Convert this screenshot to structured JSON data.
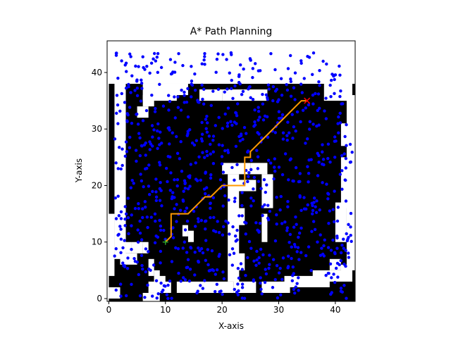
{
  "chart_data": {
    "type": "scatter",
    "title": "A* Path Planning",
    "xlabel": "X-axis",
    "ylabel": "Y-axis",
    "xlim": [
      -0.3,
      43.5
    ],
    "ylim": [
      -0.5,
      45.6
    ],
    "xticks": [
      0,
      10,
      20,
      30,
      40
    ],
    "yticks": [
      0,
      10,
      20,
      30,
      40
    ],
    "grid": false,
    "legend": "none",
    "occupancy_grid": {
      "cell_size": 1,
      "free_value_color": "#ffffff",
      "occupied_value_color": "#000000",
      "background_extent_x": [
        0,
        43
      ],
      "background_extent_y": [
        0,
        38
      ],
      "free_cells": [
        [
          0,
          1,
          0,
          1
        ],
        [
          0,
          0,
          3,
          0
        ],
        [
          0,
          0,
          4,
          14
        ],
        [
          1,
          2,
          7,
          39
        ],
        [
          2,
          4,
          6,
          7
        ],
        [
          3,
          3,
          8,
          9
        ],
        [
          4,
          5,
          8,
          9
        ],
        [
          5,
          5,
          9,
          9
        ],
        [
          6,
          6,
          8,
          9
        ],
        [
          6,
          8,
          -1,
          0
        ],
        [
          5,
          6,
          32,
          33
        ],
        [
          6,
          7,
          34,
          35
        ],
        [
          7,
          7,
          4,
          6
        ],
        [
          8,
          8,
          3,
          4
        ],
        [
          8,
          9,
          1,
          3
        ],
        [
          7,
          10,
          1,
          2
        ],
        [
          6,
          11,
          35,
          37
        ],
        [
          11,
          13,
          36,
          37
        ],
        [
          12,
          21,
          1,
          2
        ],
        [
          13,
          13,
          11,
          12
        ],
        [
          14,
          14,
          10,
          11
        ],
        [
          16,
          19,
          35,
          36
        ],
        [
          20,
          27,
          35,
          36
        ],
        [
          22,
          24,
          1,
          2
        ],
        [
          22,
          22,
          3,
          4
        ],
        [
          23,
          25,
          1,
          2
        ],
        [
          21,
          22,
          3,
          21
        ],
        [
          22,
          23,
          5,
          7
        ],
        [
          22,
          23,
          13,
          15
        ],
        [
          22,
          25,
          19,
          20
        ],
        [
          20,
          24,
          22,
          23
        ],
        [
          25,
          27,
          22,
          23
        ],
        [
          27,
          28,
          16,
          21
        ],
        [
          27,
          27,
          10,
          14
        ],
        [
          27,
          30,
          1,
          2
        ],
        [
          30,
          31,
          1,
          2
        ],
        [
          31,
          38,
          2,
          3
        ],
        [
          36,
          42,
          3,
          4
        ],
        [
          41,
          42,
          4,
          5
        ],
        [
          42,
          43,
          5,
          35
        ],
        [
          41,
          42,
          16,
          24
        ],
        [
          39,
          40,
          5,
          6
        ],
        [
          40,
          41,
          10,
          16
        ],
        [
          41,
          42,
          27,
          30
        ],
        [
          41,
          42,
          35,
          38
        ],
        [
          38,
          42,
          35,
          38
        ]
      ]
    },
    "obstacle_samples": {
      "color": "#0000ff",
      "count": 900,
      "seed": 7,
      "x_range": [
        1,
        43
      ],
      "y_range": [
        0,
        43.5
      ]
    },
    "series": [
      {
        "type": "line",
        "color": "#ff9900",
        "x": [
          10,
          11,
          11,
          12,
          12,
          13,
          13,
          14,
          14,
          15,
          15,
          16,
          16,
          17,
          17,
          18,
          18,
          19,
          19,
          20,
          20,
          21,
          21,
          22,
          22,
          23,
          23,
          24,
          24,
          25,
          25,
          26,
          26,
          27,
          27,
          28,
          28,
          29,
          29,
          30,
          30,
          31,
          31,
          32,
          32,
          33,
          33,
          34,
          34,
          35
        ],
        "y": [
          10,
          11,
          15,
          15,
          15,
          15,
          15,
          15,
          15,
          16,
          16,
          17,
          17,
          18,
          18,
          18,
          18,
          19,
          19,
          20,
          20,
          20,
          20,
          20,
          20,
          20,
          20,
          20,
          25,
          25,
          26,
          27,
          27,
          28,
          28,
          29,
          29,
          30,
          30,
          31,
          31,
          32,
          32,
          33,
          33,
          34,
          34,
          35,
          35,
          35
        ]
      }
    ],
    "start": {
      "x": 10,
      "y": 10,
      "color": "#2ca02c"
    },
    "goal": {
      "x": 35,
      "y": 35,
      "color": "#ff0000"
    }
  }
}
